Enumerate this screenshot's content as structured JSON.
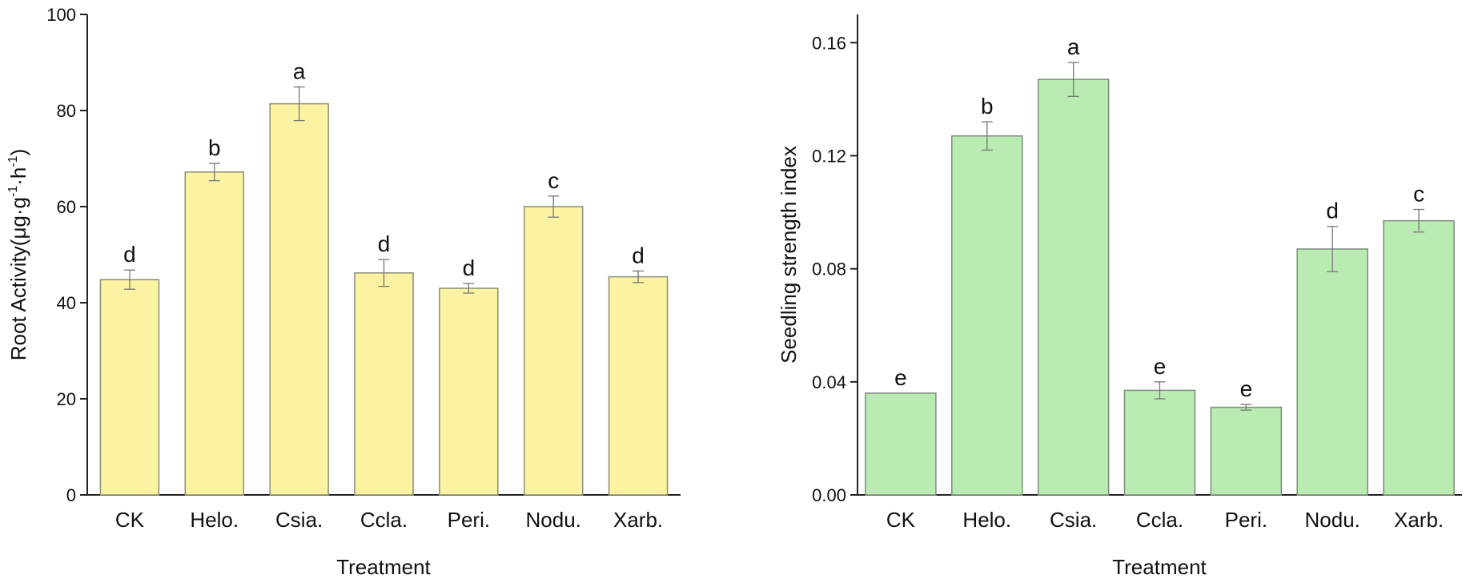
{
  "chart_data": [
    {
      "type": "bar",
      "categories": [
        "CK",
        "Helo.",
        "Csia.",
        "Ccla.",
        "Peri.",
        "Nodu.",
        "Xarb."
      ],
      "values": [
        44.8,
        67.2,
        81.4,
        46.2,
        43.0,
        60.0,
        45.4
      ],
      "errors": [
        2.0,
        1.8,
        3.5,
        2.8,
        1.0,
        2.2,
        1.2
      ],
      "significance_letters": [
        "d",
        "b",
        "a",
        "d",
        "d",
        "c",
        "d"
      ],
      "xlabel": "Treatment",
      "ylabel_parts": [
        "Root Activity(μg·g",
        "-1",
        "·h",
        "-1",
        ")"
      ],
      "ylim": [
        0,
        100
      ],
      "yticks": [
        0,
        20,
        40,
        60,
        80,
        100
      ],
      "ytick_labels": [
        "0",
        "20",
        "40",
        "60",
        "80",
        "100"
      ],
      "bar_color": "#fbf3a2",
      "bar_edge_color": "#8c8c78"
    },
    {
      "type": "bar",
      "categories": [
        "CK",
        "Helo.",
        "Csia.",
        "Ccla.",
        "Peri.",
        "Nodu.",
        "Xarb."
      ],
      "values": [
        0.036,
        0.127,
        0.147,
        0.037,
        0.031,
        0.087,
        0.097
      ],
      "errors": [
        0.0,
        0.005,
        0.006,
        0.003,
        0.001,
        0.008,
        0.004
      ],
      "significance_letters": [
        "e",
        "b",
        "a",
        "e",
        "e",
        "d",
        "c"
      ],
      "xlabel": "Treatment",
      "ylabel": "Seedling strength index",
      "ylim": [
        0,
        0.17
      ],
      "yticks": [
        0,
        0.04,
        0.08,
        0.12,
        0.16
      ],
      "ytick_labels": [
        "0.00",
        "0.04",
        "0.08",
        "0.12",
        "0.16"
      ],
      "bar_color": "#b9ebb2",
      "bar_edge_color": "#7f8c7f"
    }
  ]
}
